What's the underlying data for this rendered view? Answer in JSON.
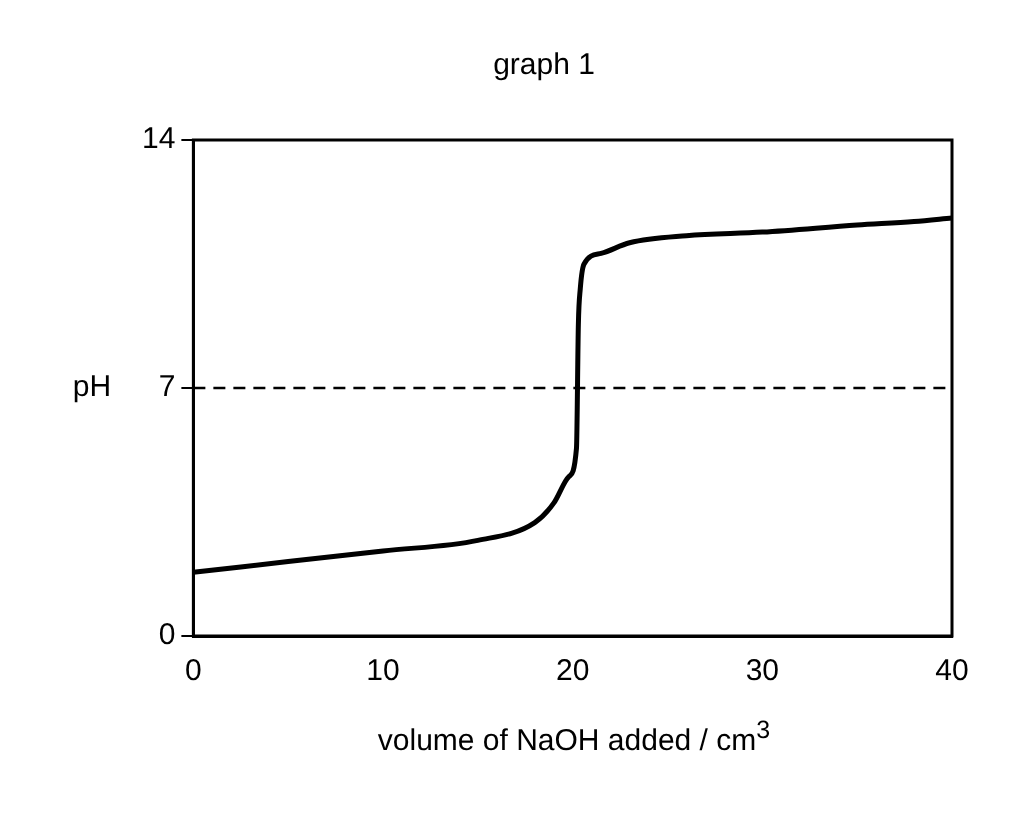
{
  "chart_data": {
    "type": "line",
    "title": "graph 1",
    "xlabel": "volume of NaOH added / cm$^{3}$",
    "ylabel": "pH",
    "series": [
      {
        "color": "#000000",
        "x": [
          0,
          5,
          10,
          15,
          18,
          19,
          19.8,
          20.2,
          20.3,
          20.4,
          20.6,
          21.5,
          23,
          26,
          30,
          35,
          38,
          40
        ],
        "values": [
          1.8,
          2.1,
          2.4,
          2.7,
          3.2,
          3.75,
          4.5,
          5.3,
          8.8,
          9.8,
          10.5,
          10.8,
          11.1,
          11.3,
          11.4,
          11.6,
          11.7,
          11.8
        ]
      }
    ],
    "xlim": [
      0,
      40
    ],
    "xticks": [
      0,
      10,
      20,
      30,
      40
    ],
    "ylim": [
      0,
      14
    ],
    "yticks": [
      0,
      7,
      14
    ],
    "grid": false,
    "legend": false,
    "marker": "none",
    "line_style": "solid",
    "ref_lines": [
      {
        "axis": "y",
        "value": 7,
        "line_style": "dashed",
        "color": "#000000"
      }
    ]
  }
}
